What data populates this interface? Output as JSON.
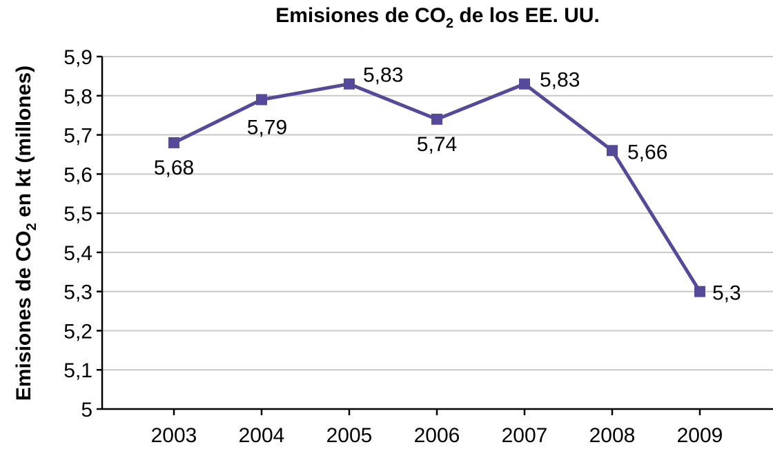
{
  "chart_data": {
    "type": "line",
    "title": "Emisiones de CO₂ de los EE. UU.",
    "title_parts": [
      "Emisiones de CO",
      "2",
      " de los EE. UU."
    ],
    "ylabel": "Emisiones de CO₂ en kt (millones)",
    "ylabel_parts": [
      "Emisiones de CO",
      "2",
      " en kt (millones)"
    ],
    "xlabel": "",
    "categories": [
      "2003",
      "2004",
      "2005",
      "2006",
      "2007",
      "2008",
      "2009"
    ],
    "series": [
      {
        "values": [
          5.68,
          5.79,
          5.83,
          5.74,
          5.83,
          5.66,
          5.3
        ]
      }
    ],
    "data_labels": [
      "5,68",
      "5,79",
      "5,83",
      "5,74",
      "5,83",
      "5,66",
      "5,3"
    ],
    "ylim": [
      5,
      5.9
    ],
    "yticks": [
      5,
      5.1,
      5.2,
      5.3,
      5.4,
      5.5,
      5.6,
      5.7,
      5.8,
      5.9
    ],
    "ytick_labels": [
      "5",
      "5,1",
      "5,2",
      "5,3",
      "5,4",
      "5,5",
      "5,6",
      "5,7",
      "5,8",
      "5,9"
    ],
    "grid": true,
    "line_color": "#544a99"
  }
}
